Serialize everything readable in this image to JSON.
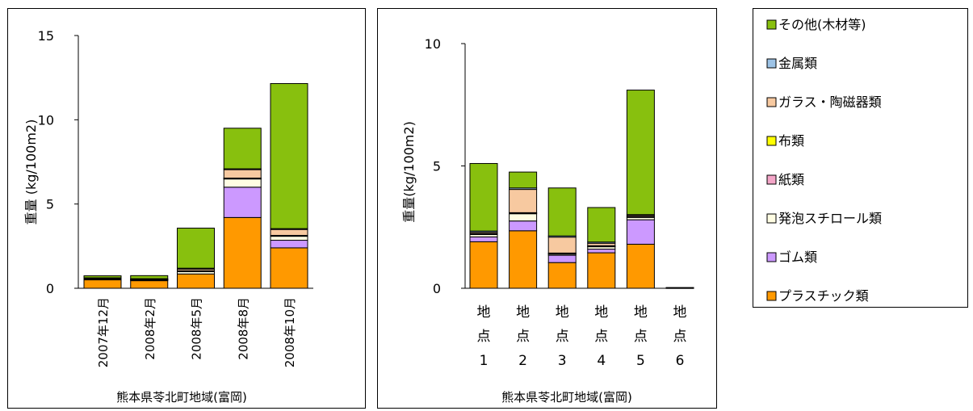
{
  "legend": {
    "items": [
      {
        "key": "other",
        "label": "その他(木材等)",
        "color": "#88c00e"
      },
      {
        "key": "metal",
        "label": "金属類",
        "color": "#9dc3e6"
      },
      {
        "key": "glass",
        "label": "ガラス・陶磁器類",
        "color": "#f7c9a0"
      },
      {
        "key": "cloth",
        "label": "布類",
        "color": "#ffff00"
      },
      {
        "key": "paper",
        "label": "紙類",
        "color": "#f4a6c8"
      },
      {
        "key": "foam",
        "label": "発泡スチロール類",
        "color": "#fffde3"
      },
      {
        "key": "rubber",
        "label": "ゴム類",
        "color": "#cc99ff"
      },
      {
        "key": "plastic",
        "label": "プラスチック類",
        "color": "#ff9900"
      }
    ]
  },
  "chart_data": [
    {
      "type": "bar",
      "stacked": true,
      "ylabel": "重量 (kg/100m2)",
      "footer": "熊本県苓北町地域(富岡)",
      "ylim": [
        0,
        15
      ],
      "yticks": [
        0,
        5,
        10,
        15
      ],
      "categories": [
        "2007年12月",
        "2008年2月",
        "2008年5月",
        "2008年8月",
        "2008年10月"
      ],
      "series": [
        {
          "key": "plastic",
          "values": [
            0.5,
            0.45,
            0.85,
            4.2,
            2.4
          ]
        },
        {
          "key": "rubber",
          "values": [
            0.0,
            0.0,
            0.0,
            1.8,
            0.45
          ]
        },
        {
          "key": "foam",
          "values": [
            0.05,
            0.05,
            0.15,
            0.5,
            0.25
          ]
        },
        {
          "key": "paper",
          "values": [
            0.02,
            0.02,
            0.02,
            0.02,
            0.02
          ]
        },
        {
          "key": "cloth",
          "values": [
            0.02,
            0.02,
            0.02,
            0.02,
            0.02
          ]
        },
        {
          "key": "glass",
          "values": [
            0.03,
            0.03,
            0.1,
            0.5,
            0.35
          ]
        },
        {
          "key": "metal",
          "values": [
            0.0,
            0.0,
            0.05,
            0.05,
            0.05
          ]
        },
        {
          "key": "other",
          "values": [
            0.12,
            0.18,
            2.38,
            2.41,
            8.61
          ]
        }
      ]
    },
    {
      "type": "bar",
      "stacked": true,
      "ylabel": "重量(kg/100m2)",
      "footer": "熊本県苓北町地域(富岡)",
      "ylim": [
        0,
        10
      ],
      "yticks": [
        0,
        5,
        10
      ],
      "categories": [
        [
          "地",
          "点",
          "1"
        ],
        [
          "地",
          "点",
          "2"
        ],
        [
          "地",
          "点",
          "3"
        ],
        [
          "地",
          "点",
          "4"
        ],
        [
          "地",
          "点",
          "5"
        ],
        [
          "地",
          "点",
          "6"
        ]
      ],
      "series": [
        {
          "key": "plastic",
          "values": [
            1.9,
            2.35,
            1.05,
            1.45,
            1.8,
            0.02
          ]
        },
        {
          "key": "rubber",
          "values": [
            0.2,
            0.4,
            0.3,
            0.15,
            1.0,
            0.0
          ]
        },
        {
          "key": "foam",
          "values": [
            0.1,
            0.3,
            0.05,
            0.1,
            0.1,
            0.01
          ]
        },
        {
          "key": "paper",
          "values": [
            0.02,
            0.02,
            0.02,
            0.02,
            0.02,
            0.0
          ]
        },
        {
          "key": "cloth",
          "values": [
            0.02,
            0.02,
            0.02,
            0.02,
            0.02,
            0.0
          ]
        },
        {
          "key": "glass",
          "values": [
            0.05,
            0.95,
            0.65,
            0.1,
            0.05,
            0.0
          ]
        },
        {
          "key": "metal",
          "values": [
            0.05,
            0.06,
            0.05,
            0.05,
            0.02,
            0.0
          ]
        },
        {
          "key": "other",
          "values": [
            2.76,
            0.65,
            1.96,
            1.41,
            5.09,
            0.0
          ]
        }
      ]
    }
  ]
}
